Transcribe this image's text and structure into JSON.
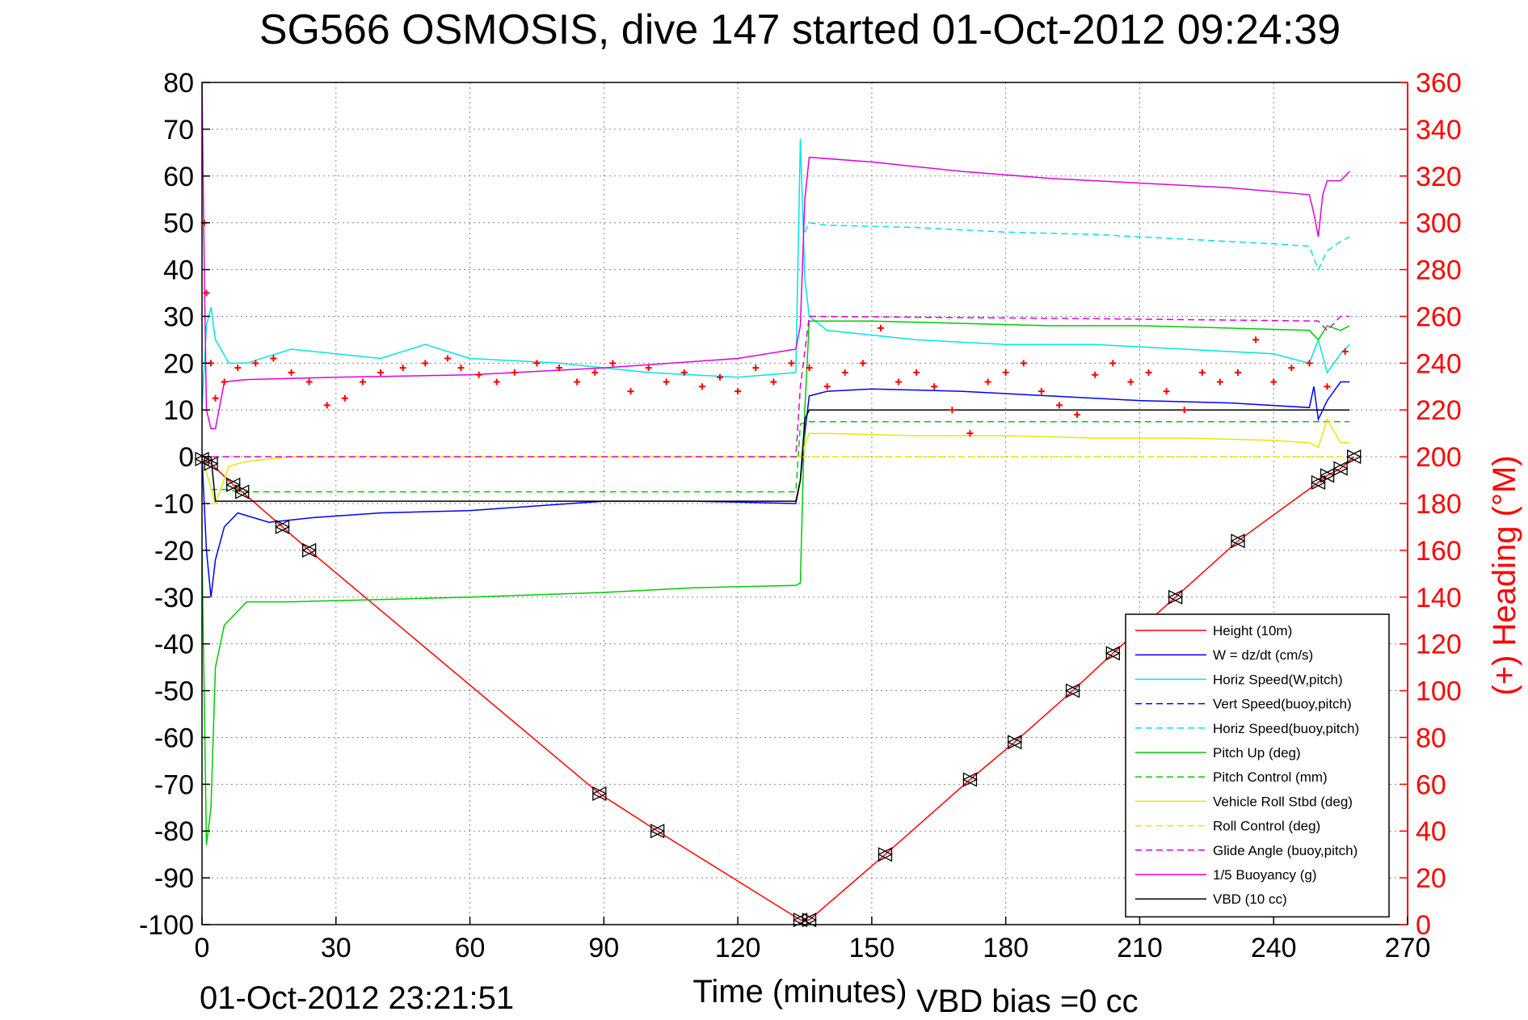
{
  "chart_data": {
    "type": "line",
    "title": "SG566 OSMOSIS, dive 147 started 01-Oct-2012 09:24:39",
    "xlabel": "Time (minutes)",
    "ylabel": "",
    "ylabel_right": "(+) Heading (°M)",
    "xlim": [
      0,
      270
    ],
    "ylim": [
      -100,
      80
    ],
    "ylim_right": [
      0,
      360
    ],
    "xticks": [
      0,
      30,
      60,
      90,
      120,
      150,
      180,
      210,
      240,
      270
    ],
    "yticks": [
      -100,
      -90,
      -80,
      -70,
      -60,
      -50,
      -40,
      -30,
      -20,
      -10,
      0,
      10,
      20,
      30,
      40,
      50,
      60,
      70,
      80
    ],
    "yticks_right": [
      0,
      20,
      40,
      60,
      80,
      100,
      120,
      140,
      160,
      180,
      200,
      220,
      240,
      260,
      280,
      300,
      320,
      340,
      360
    ],
    "grid": true,
    "legend_position": "bottom-right",
    "footer_left": "01-Oct-2012 23:21:51",
    "footer_right": "VBD bias =0 cc",
    "series": [
      {
        "name": "Height (10m)",
        "color": "#ff0000",
        "style": "solid",
        "x": [
          0,
          2,
          7,
          9,
          18,
          24,
          89,
          102,
          134,
          136,
          153,
          172,
          182,
          195,
          204,
          218,
          232,
          250,
          252,
          255,
          258
        ],
        "y": [
          -0.5,
          -1.5,
          -6,
          -7.5,
          -15,
          -20,
          -72,
          -80,
          -99,
          -99,
          -85,
          -69,
          -61,
          -50,
          -42,
          -30,
          -18,
          -5.5,
          -4,
          -2.5,
          0
        ]
      },
      {
        "name": "W = dz/dt (cm/s)",
        "color": "#0000ff",
        "style": "solid",
        "x": [
          0,
          1,
          2,
          3,
          5,
          8,
          15,
          25,
          40,
          60,
          90,
          110,
          133,
          134,
          135,
          136,
          140,
          150,
          170,
          190,
          210,
          230,
          248,
          249,
          250,
          252,
          255,
          257
        ],
        "y": [
          0,
          -20,
          -30,
          -22,
          -15,
          -12,
          -14,
          -13,
          -12,
          -11.5,
          -9.5,
          -9.5,
          -10,
          -5,
          5,
          13,
          14,
          14.5,
          14,
          13,
          12,
          11.5,
          10.5,
          15,
          8,
          12,
          16,
          16
        ]
      },
      {
        "name": "Horiz Speed(W,pitch)",
        "color": "#00e5e5",
        "style": "solid",
        "x": [
          0,
          1,
          2,
          3,
          6,
          10,
          20,
          30,
          40,
          50,
          60,
          80,
          100,
          120,
          133,
          134,
          135,
          136,
          140,
          160,
          180,
          200,
          220,
          240,
          248,
          250,
          252,
          255,
          257
        ],
        "y": [
          10,
          28,
          32,
          25,
          20,
          20,
          23,
          22,
          21,
          24,
          21,
          20,
          18,
          17,
          18,
          68,
          38,
          30,
          27,
          25,
          24,
          24,
          23,
          22,
          20,
          25,
          18,
          22,
          24
        ]
      },
      {
        "name": "Vert Speed(buoy,pitch)",
        "color": "#0000ff",
        "style": "dashed",
        "x": [],
        "y": []
      },
      {
        "name": "Horiz Speed(buoy,pitch)",
        "color": "#00e5e5",
        "style": "dashed",
        "x": [
          135,
          136,
          140,
          160,
          180,
          200,
          220,
          240,
          248,
          250,
          252,
          255,
          257
        ],
        "y": [
          48,
          50,
          49.5,
          49,
          48,
          47.5,
          46.5,
          45.5,
          45,
          40,
          44,
          46,
          47
        ]
      },
      {
        "name": "Pitch Up (deg)",
        "color": "#00cc00",
        "style": "solid",
        "x": [
          0,
          1,
          2,
          3,
          5,
          10,
          20,
          40,
          60,
          90,
          110,
          133,
          134,
          135,
          136,
          150,
          170,
          190,
          210,
          230,
          248,
          250,
          252,
          255,
          257
        ],
        "y": [
          -20,
          -83,
          -75,
          -45,
          -36,
          -31,
          -31,
          -30.5,
          -30,
          -29,
          -28,
          -27.5,
          -27,
          10,
          29,
          29,
          28.5,
          28,
          28,
          27.5,
          27,
          25,
          28,
          27,
          28
        ]
      },
      {
        "name": "Pitch Control (mm)",
        "color": "#00cc00",
        "style": "dashed",
        "x": [
          2,
          6,
          8,
          133,
          134,
          136,
          255,
          257
        ],
        "y": [
          -7,
          -7,
          -7.5,
          -7.5,
          7,
          7.5,
          7.5,
          7.5
        ]
      },
      {
        "name": "Vehicle Roll Stbd (deg)",
        "color": "#e8e800",
        "style": "solid",
        "x": [
          0,
          3,
          6,
          10,
          20,
          40,
          60,
          90,
          120,
          133,
          134,
          136,
          140,
          160,
          180,
          200,
          220,
          240,
          248,
          250,
          252,
          255,
          257
        ],
        "y": [
          0,
          -10,
          -2,
          -1,
          0,
          0,
          0,
          0,
          0,
          0,
          0,
          5,
          5,
          4.5,
          4.5,
          4,
          4,
          3.5,
          3,
          2,
          8,
          3,
          3
        ]
      },
      {
        "name": "Roll Control (deg)",
        "color": "#e8e800",
        "style": "dashed",
        "x": [
          0,
          10,
          134,
          136,
          257
        ],
        "y": [
          0,
          0,
          0,
          0,
          0
        ]
      },
      {
        "name": "Glide Angle (buoy,pitch)",
        "color": "#e000e0",
        "style": "dashed",
        "x": [
          0,
          133,
          134,
          136,
          200,
          250,
          252,
          255,
          257
        ],
        "y": [
          0,
          0,
          15,
          30,
          29.5,
          29,
          27,
          30,
          30
        ]
      },
      {
        "name": "1/5 Buoyancy (g)",
        "color": "#e000e0",
        "style": "solid",
        "x": [
          0,
          0.5,
          1,
          2,
          3,
          5,
          10,
          30,
          60,
          90,
          120,
          133,
          134,
          135,
          136,
          150,
          170,
          190,
          210,
          230,
          248,
          249,
          250,
          251,
          252,
          255,
          257
        ],
        "y": [
          80,
          40,
          10,
          6,
          6,
          16,
          16.5,
          17,
          17.5,
          19,
          21,
          23,
          28,
          55,
          64,
          63,
          61,
          59.5,
          58.5,
          57.5,
          56,
          52,
          47,
          56,
          59,
          59,
          61
        ]
      },
      {
        "name": "VBD (10 cc)",
        "color": "#000000",
        "style": "solid",
        "x": [
          0,
          2,
          3,
          133,
          134,
          135,
          136,
          255,
          257
        ],
        "y": [
          0,
          0,
          -9.5,
          -9.5,
          -5,
          8,
          10,
          10,
          10
        ]
      }
    ],
    "heading": {
      "name": "Heading",
      "color": "#ff0000",
      "marker": "+",
      "x": [
        0.5,
        1,
        2,
        3,
        5,
        8,
        12,
        16,
        20,
        24,
        28,
        32,
        36,
        40,
        45,
        50,
        55,
        58,
        62,
        66,
        70,
        75,
        80,
        84,
        88,
        92,
        96,
        100,
        104,
        108,
        112,
        116,
        120,
        124,
        128,
        132,
        136,
        140,
        144,
        148,
        152,
        156,
        160,
        164,
        168,
        172,
        176,
        180,
        184,
        188,
        192,
        196,
        200,
        204,
        208,
        212,
        216,
        220,
        224,
        228,
        232,
        236,
        240,
        244,
        248,
        252,
        256
      ],
      "y": [
        300,
        270,
        240,
        225,
        232,
        238,
        240,
        242,
        236,
        232,
        222,
        225,
        232,
        236,
        238,
        240,
        242,
        238,
        235,
        232,
        236,
        240,
        238,
        232,
        236,
        240,
        228,
        238,
        232,
        236,
        230,
        234,
        228,
        238,
        232,
        240,
        238,
        230,
        236,
        240,
        255,
        232,
        236,
        230,
        220,
        210,
        232,
        236,
        240,
        228,
        222,
        218,
        235,
        240,
        232,
        236,
        228,
        220,
        236,
        232,
        236,
        250,
        232,
        238,
        240,
        230,
        245
      ]
    }
  }
}
